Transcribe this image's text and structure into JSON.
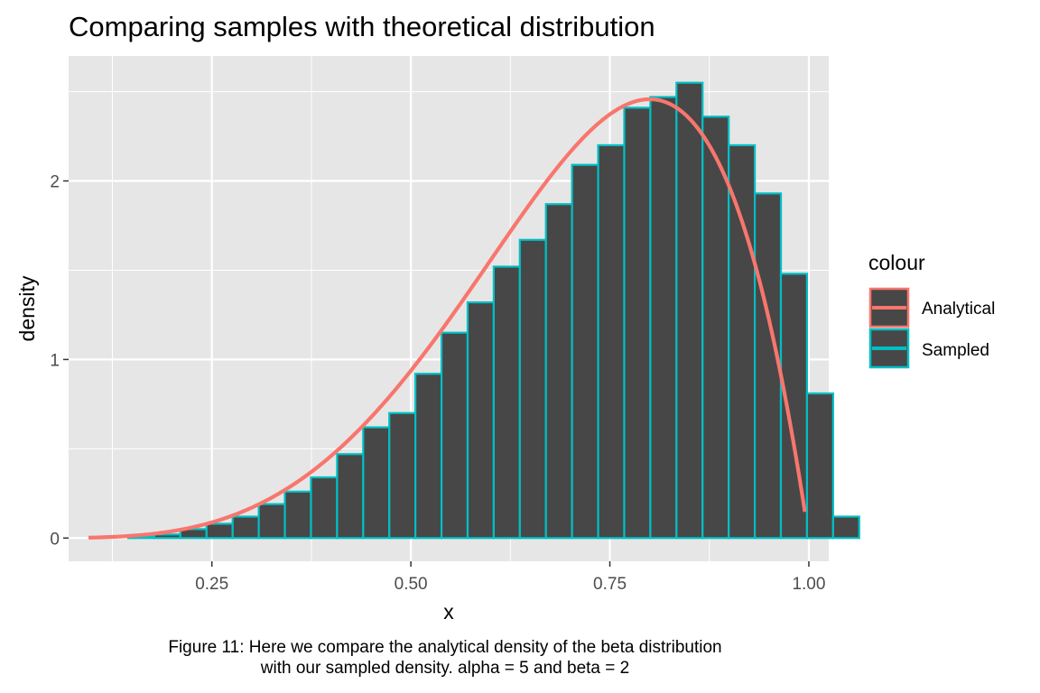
{
  "chart_data": {
    "type": "bar",
    "title": "Comparing samples with theoretical distribution",
    "xlabel": "x",
    "ylabel": "density",
    "xlim": [
      0.07,
      1.025
    ],
    "ylim": [
      -0.13,
      2.7
    ],
    "x_ticks": [
      0.25,
      0.5,
      0.75,
      1.0
    ],
    "x_tick_labels": [
      "0.25",
      "0.50",
      "0.75",
      "1.00"
    ],
    "x_minor_ticks": [
      0.125,
      0.375,
      0.625,
      0.875
    ],
    "y_ticks": [
      0,
      1,
      2
    ],
    "y_tick_labels": [
      "0",
      "1",
      "2"
    ],
    "y_minor_ticks": [
      0.5,
      1.5,
      2.5
    ],
    "grid": true,
    "legend": {
      "title": "colour",
      "position": "right",
      "entries": [
        {
          "label": "Analytical",
          "color": "#F8766D"
        },
        {
          "label": "Sampled",
          "color": "#00BFC4"
        }
      ]
    },
    "series": [
      {
        "name": "Sampled",
        "kind": "histogram",
        "fill": "#474747",
        "outline": "#00BFC4",
        "bin_width": 0.0328,
        "bin_start": 0.0793,
        "values": [
          0.0,
          0.0,
          0.01,
          0.02,
          0.05,
          0.08,
          0.12,
          0.19,
          0.26,
          0.34,
          0.47,
          0.62,
          0.7,
          0.92,
          1.15,
          1.32,
          1.52,
          1.67,
          1.87,
          2.09,
          2.2,
          2.41,
          2.47,
          2.55,
          2.36,
          2.2,
          1.93,
          1.48,
          0.81,
          0.12
        ]
      },
      {
        "name": "Analytical",
        "kind": "line",
        "color": "#F8766D",
        "distribution": "beta",
        "alpha": 5,
        "beta": 2,
        "x_range": [
          0.095,
          0.995
        ]
      }
    ]
  },
  "caption": {
    "line1": "Figure 11: Here we compare the analytical density of the beta distribution",
    "line2": "with our sampled density. alpha =  5  and beta =  2"
  }
}
